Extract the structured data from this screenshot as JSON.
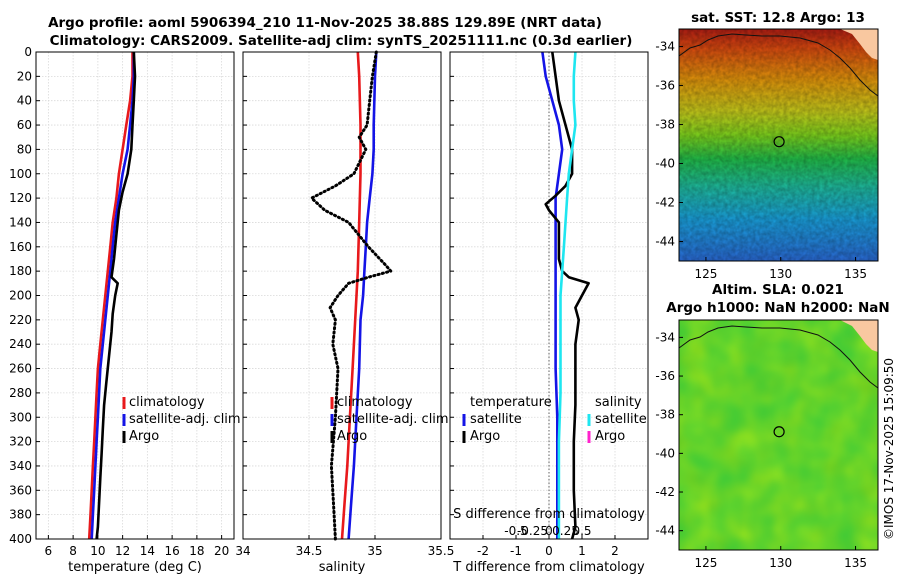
{
  "titles": {
    "line1": "Argo profile: aoml 5906394_210 11-Nov-2025 38.88S 129.89E (NRT data)",
    "line2": "Climatology: CARS2009. Satellite-adj clim: synTS_20251111.nc (0.3d earlier)",
    "sst": "sat. SST: 12.8 Argo: 13",
    "sla": "Altim. SLA: 0.021",
    "h": "Argo h1000: NaN h2000: NaN",
    "credit": "©IMOS 17-Nov-2025 15:09:50"
  },
  "colors": {
    "climatology": "#e8191c",
    "satellite": "#1414e6",
    "argo": "#000000",
    "sat_salinity": "#1ee6f0",
    "argo_salinity": "#ff22cc"
  },
  "chart_data": [
    {
      "id": "temperature",
      "type": "line",
      "xlabel": "temperature (deg C)",
      "ylabel": "",
      "xlim": [
        5,
        21
      ],
      "ylim": [
        400,
        0
      ],
      "xticks": [
        "6",
        "8",
        "10",
        "12",
        "14",
        "16",
        "18",
        "20"
      ],
      "yticks": [
        "0",
        "20",
        "40",
        "60",
        "80",
        "100",
        "120",
        "140",
        "160",
        "180",
        "200",
        "220",
        "240",
        "260",
        "280",
        "300",
        "320",
        "340",
        "360",
        "380",
        "400"
      ],
      "legend": [
        "climatology",
        "satellite-adj. clim",
        "Argo"
      ],
      "series": [
        {
          "name": "climatology",
          "color": "#e8191c",
          "style": "solid",
          "points": [
            [
              12.8,
              0
            ],
            [
              12.8,
              20
            ],
            [
              12.6,
              40
            ],
            [
              12.3,
              60
            ],
            [
              12.0,
              80
            ],
            [
              11.7,
              100
            ],
            [
              11.5,
              120
            ],
            [
              11.2,
              140
            ],
            [
              11.0,
              160
            ],
            [
              10.8,
              180
            ],
            [
              10.6,
              200
            ],
            [
              10.4,
              220
            ],
            [
              10.2,
              240
            ],
            [
              10.0,
              260
            ],
            [
              9.9,
              280
            ],
            [
              9.8,
              300
            ],
            [
              9.7,
              320
            ],
            [
              9.6,
              340
            ],
            [
              9.5,
              360
            ],
            [
              9.4,
              380
            ],
            [
              9.3,
              400
            ]
          ]
        },
        {
          "name": "satellite-adj. clim",
          "color": "#1414e6",
          "style": "solid",
          "points": [
            [
              12.9,
              0
            ],
            [
              12.9,
              20
            ],
            [
              12.8,
              40
            ],
            [
              12.6,
              60
            ],
            [
              12.4,
              80
            ],
            [
              12.0,
              100
            ],
            [
              11.7,
              120
            ],
            [
              11.4,
              140
            ],
            [
              11.2,
              160
            ],
            [
              11.0,
              180
            ],
            [
              10.8,
              200
            ],
            [
              10.6,
              220
            ],
            [
              10.4,
              240
            ],
            [
              10.2,
              260
            ],
            [
              10.1,
              280
            ],
            [
              10.0,
              300
            ],
            [
              9.9,
              320
            ],
            [
              9.8,
              340
            ],
            [
              9.7,
              360
            ],
            [
              9.6,
              380
            ],
            [
              9.5,
              400
            ]
          ]
        },
        {
          "name": "Argo",
          "color": "#000000",
          "style": "solid",
          "points": [
            [
              12.9,
              0
            ],
            [
              13.0,
              20
            ],
            [
              12.9,
              40
            ],
            [
              12.8,
              60
            ],
            [
              12.7,
              80
            ],
            [
              12.4,
              100
            ],
            [
              12.0,
              115
            ],
            [
              11.7,
              130
            ],
            [
              11.5,
              150
            ],
            [
              11.3,
              170
            ],
            [
              11.1,
              185
            ],
            [
              11.6,
              190
            ],
            [
              11.4,
              200
            ],
            [
              11.2,
              215
            ],
            [
              11.1,
              230
            ],
            [
              10.9,
              250
            ],
            [
              10.7,
              270
            ],
            [
              10.5,
              290
            ],
            [
              10.4,
              310
            ],
            [
              10.3,
              330
            ],
            [
              10.2,
              350
            ],
            [
              10.1,
              370
            ],
            [
              10.0,
              390
            ],
            [
              9.9,
              400
            ]
          ]
        }
      ]
    },
    {
      "id": "salinity",
      "type": "line",
      "xlabel": "salinity",
      "xlim": [
        34,
        35.5
      ],
      "ylim": [
        400,
        0
      ],
      "xticks": [
        "34",
        "34.5",
        "35",
        "35.5"
      ],
      "legend": [
        "climatology",
        "satellite-adj. clim",
        "Argo"
      ],
      "series": [
        {
          "name": "climatology",
          "color": "#e8191c",
          "style": "solid",
          "points": [
            [
              34.87,
              0
            ],
            [
              34.88,
              20
            ],
            [
              34.89,
              60
            ],
            [
              34.89,
              100
            ],
            [
              34.88,
              140
            ],
            [
              34.87,
              180
            ],
            [
              34.85,
              220
            ],
            [
              34.83,
              260
            ],
            [
              34.81,
              300
            ],
            [
              34.79,
              340
            ],
            [
              34.77,
              370
            ],
            [
              34.75,
              400
            ]
          ]
        },
        {
          "name": "satellite-adj. clim",
          "color": "#1414e6",
          "style": "solid",
          "points": [
            [
              35.01,
              0
            ],
            [
              35.0,
              20
            ],
            [
              34.99,
              60
            ],
            [
              34.99,
              80
            ],
            [
              34.98,
              100
            ],
            [
              34.96,
              120
            ],
            [
              34.94,
              140
            ],
            [
              34.93,
              160
            ],
            [
              34.92,
              180
            ],
            [
              34.91,
              200
            ],
            [
              34.89,
              220
            ],
            [
              34.88,
              260
            ],
            [
              34.86,
              300
            ],
            [
              34.84,
              340
            ],
            [
              34.82,
              370
            ],
            [
              34.8,
              400
            ]
          ]
        },
        {
          "name": "Argo",
          "color": "#000000",
          "style": "dotted",
          "points": [
            [
              35.01,
              0
            ],
            [
              34.98,
              20
            ],
            [
              34.96,
              40
            ],
            [
              34.94,
              60
            ],
            [
              34.88,
              70
            ],
            [
              34.93,
              80
            ],
            [
              34.84,
              100
            ],
            [
              34.7,
              110
            ],
            [
              34.52,
              120
            ],
            [
              34.62,
              130
            ],
            [
              34.8,
              140
            ],
            [
              34.95,
              160
            ],
            [
              35.08,
              175
            ],
            [
              35.12,
              180
            ],
            [
              34.95,
              185
            ],
            [
              34.8,
              190
            ],
            [
              34.72,
              200
            ],
            [
              34.66,
              210
            ],
            [
              34.7,
              220
            ],
            [
              34.68,
              240
            ],
            [
              34.72,
              260
            ],
            [
              34.7,
              300
            ],
            [
              34.67,
              340
            ],
            [
              34.69,
              380
            ],
            [
              34.7,
              400
            ]
          ]
        }
      ]
    },
    {
      "id": "difference",
      "type": "line",
      "xlabel": "T difference from climatology",
      "secondary_xlabel": "S difference from climatology",
      "xlim": [
        -3,
        3
      ],
      "ylim": [
        400,
        0
      ],
      "xticks": [
        "-2",
        "-1",
        "0",
        "1",
        "2"
      ],
      "secondary_xticks": [
        "-0.5",
        "-0.25",
        "0",
        "0.25",
        "0.5"
      ],
      "legend_left_title": "temperature",
      "legend_right_title": "salinity",
      "legend": [
        "satellite",
        "Argo",
        "satellite",
        "Argo"
      ],
      "series": [
        {
          "name": "temperature satellite",
          "color": "#1414e6",
          "style": "solid",
          "points": [
            [
              -0.2,
              0
            ],
            [
              -0.1,
              20
            ],
            [
              0.1,
              40
            ],
            [
              0.3,
              60
            ],
            [
              0.4,
              80
            ],
            [
              0.3,
              100
            ],
            [
              0.2,
              120
            ],
            [
              0.2,
              140
            ],
            [
              0.2,
              160
            ],
            [
              0.2,
              180
            ],
            [
              0.2,
              200
            ],
            [
              0.2,
              220
            ],
            [
              0.2,
              240
            ],
            [
              0.2,
              260
            ],
            [
              0.25,
              300
            ],
            [
              0.25,
              340
            ],
            [
              0.25,
              370
            ],
            [
              0.25,
              400
            ]
          ]
        },
        {
          "name": "temperature Argo",
          "color": "#000000",
          "style": "solid",
          "points": [
            [
              0.1,
              0
            ],
            [
              0.2,
              20
            ],
            [
              0.3,
              40
            ],
            [
              0.5,
              60
            ],
            [
              0.7,
              80
            ],
            [
              0.7,
              100
            ],
            [
              0.5,
              110
            ],
            [
              0.2,
              118
            ],
            [
              -0.1,
              125
            ],
            [
              0.0,
              130
            ],
            [
              0.3,
              140
            ],
            [
              0.3,
              160
            ],
            [
              0.3,
              170
            ],
            [
              0.4,
              180
            ],
            [
              0.6,
              185
            ],
            [
              1.2,
              190
            ],
            [
              1.0,
              200
            ],
            [
              0.8,
              210
            ],
            [
              0.9,
              220
            ],
            [
              0.8,
              240
            ],
            [
              0.8,
              260
            ],
            [
              0.8,
              290
            ],
            [
              0.75,
              320
            ],
            [
              0.75,
              360
            ],
            [
              0.8,
              390
            ],
            [
              0.7,
              400
            ]
          ]
        },
        {
          "name": "salinity satellite",
          "color": "#1ee6f0",
          "style": "solid",
          "points": [
            [
              0.8,
              0
            ],
            [
              0.75,
              20
            ],
            [
              0.75,
              40
            ],
            [
              0.8,
              60
            ],
            [
              0.7,
              80
            ],
            [
              0.6,
              100
            ],
            [
              0.55,
              120
            ],
            [
              0.5,
              140
            ],
            [
              0.45,
              160
            ],
            [
              0.4,
              180
            ],
            [
              0.35,
              200
            ],
            [
              0.35,
              240
            ],
            [
              0.35,
              280
            ],
            [
              0.3,
              320
            ],
            [
              0.3,
              360
            ],
            [
              0.3,
              400
            ]
          ]
        }
      ]
    },
    {
      "id": "sst_map",
      "type": "heatmap",
      "title": "sat. SST: 12.8 Argo: 13",
      "xticks": [
        "125",
        "130",
        "135"
      ],
      "yticks": [
        "-34",
        "-36",
        "-38",
        "-40",
        "-42",
        "-44"
      ],
      "xlim": [
        123.2,
        136.5
      ],
      "ylim": [
        -45,
        -33.1
      ],
      "marker": {
        "lon": 129.89,
        "lat": -38.88
      }
    },
    {
      "id": "sla_map",
      "type": "heatmap",
      "title": "Altim. SLA: 0.021",
      "subtitle": "Argo h1000: NaN h2000: NaN",
      "xticks": [
        "125",
        "130",
        "135"
      ],
      "yticks": [
        "-34",
        "-36",
        "-38",
        "-40",
        "-42",
        "-44"
      ],
      "xlim": [
        123.2,
        136.5
      ],
      "ylim": [
        -45,
        -33.1
      ],
      "marker": {
        "lon": 129.89,
        "lat": -38.88
      }
    }
  ]
}
